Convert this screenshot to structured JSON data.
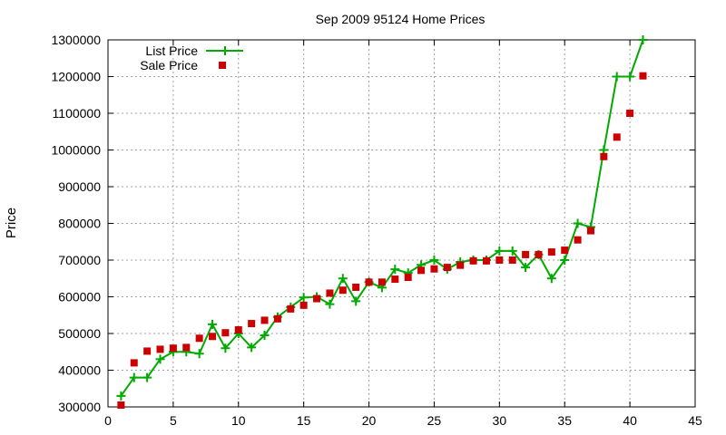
{
  "chart_data": {
    "type": "line",
    "title": "Sep 2009 95124 Home Prices",
    "xlabel": "",
    "ylabel": "Price",
    "xlim": [
      0,
      45
    ],
    "ylim": [
      300000,
      1300000
    ],
    "xticks": [
      0,
      5,
      10,
      15,
      20,
      25,
      30,
      35,
      40,
      45
    ],
    "yticks": [
      300000,
      400000,
      500000,
      600000,
      700000,
      800000,
      900000,
      1000000,
      1100000,
      1200000,
      1300000
    ],
    "xtick_labels": [
      "0",
      "5",
      "10",
      "15",
      "20",
      "25",
      "30",
      "35",
      "40",
      "45"
    ],
    "ytick_labels": [
      "300000",
      "400000",
      "500000",
      "600000",
      "700000",
      "800000",
      "900000",
      "1000000",
      "1100000",
      "1200000",
      "1300000"
    ],
    "grid": true,
    "legend_position": "top-left",
    "x": [
      1,
      2,
      3,
      4,
      5,
      6,
      7,
      8,
      9,
      10,
      11,
      12,
      13,
      14,
      15,
      16,
      17,
      18,
      19,
      20,
      21,
      22,
      23,
      24,
      25,
      26,
      27,
      28,
      29,
      30,
      31,
      32,
      33,
      34,
      35,
      36,
      37,
      38,
      39,
      40,
      41
    ],
    "series": [
      {
        "name": "List Price",
        "style": "line-points",
        "color": "#00aa00",
        "values": [
          330000,
          380000,
          380000,
          430000,
          450000,
          450000,
          445000,
          525000,
          460000,
          500000,
          462000,
          495000,
          545000,
          572000,
          598000,
          600000,
          580000,
          650000,
          588000,
          640000,
          625000,
          675000,
          665000,
          687000,
          700000,
          675000,
          695000,
          700000,
          700000,
          725000,
          725000,
          680000,
          715000,
          650000,
          700000,
          800000,
          790000,
          1000000,
          1200000,
          1200000,
          1300000
        ]
      },
      {
        "name": "Sale Price",
        "style": "points",
        "color": "#cc0000",
        "values": [
          305000,
          420000,
          452000,
          457000,
          460000,
          462000,
          487000,
          492000,
          502000,
          510000,
          527000,
          536000,
          540000,
          567000,
          577000,
          595000,
          610000,
          618000,
          626000,
          640000,
          640000,
          648000,
          653000,
          672000,
          676000,
          680000,
          686000,
          698000,
          698000,
          700000,
          700000,
          715000,
          715000,
          722000,
          727000,
          755000,
          780000,
          982000,
          1035000,
          1100000,
          1202000
        ]
      }
    ]
  },
  "colors": {
    "grid": "#a0a0a0",
    "axis": "#000000",
    "list_price": "#00aa00",
    "sale_price": "#cc0000"
  }
}
